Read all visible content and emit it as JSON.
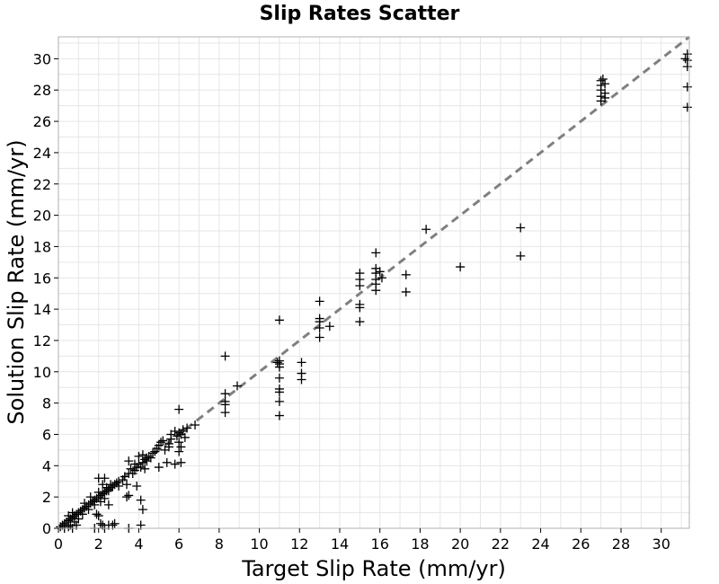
{
  "chart_data": {
    "type": "scatter",
    "title": "Slip Rates Scatter",
    "xlabel": "Target Slip Rate (mm/yr)",
    "ylabel": "Solution Slip Rate (mm/yr)",
    "xlim": [
      0,
      31.4
    ],
    "ylim": [
      0,
      31.4
    ],
    "xticks": [
      0,
      2,
      4,
      6,
      8,
      10,
      12,
      14,
      16,
      18,
      20,
      22,
      24,
      26,
      28,
      30
    ],
    "yticks": [
      0,
      2,
      4,
      6,
      8,
      10,
      12,
      14,
      16,
      18,
      20,
      22,
      24,
      26,
      28,
      30
    ],
    "grid": true,
    "marker": "plus",
    "marker_color": "#000000",
    "reference_line": {
      "style": "dashed",
      "color": "#808080",
      "from": [
        0,
        0
      ],
      "to": [
        31.4,
        31.4
      ]
    },
    "points": [
      [
        0.1,
        0.1
      ],
      [
        0.2,
        0.2
      ],
      [
        0.3,
        0.3
      ],
      [
        0.4,
        0.4
      ],
      [
        0.5,
        0.5
      ],
      [
        0.6,
        0.6
      ],
      [
        0.7,
        0.7
      ],
      [
        0.8,
        0.8
      ],
      [
        0.9,
        0.9
      ],
      [
        1.0,
        1.0
      ],
      [
        1.1,
        1.1
      ],
      [
        1.2,
        1.2
      ],
      [
        1.3,
        1.3
      ],
      [
        1.4,
        1.4
      ],
      [
        1.5,
        1.5
      ],
      [
        1.6,
        1.6
      ],
      [
        1.7,
        1.7
      ],
      [
        1.8,
        1.8
      ],
      [
        1.9,
        1.9
      ],
      [
        2.0,
        2.0
      ],
      [
        2.1,
        2.1
      ],
      [
        2.2,
        2.2
      ],
      [
        2.3,
        2.3
      ],
      [
        2.4,
        2.4
      ],
      [
        2.5,
        2.5
      ],
      [
        2.6,
        2.6
      ],
      [
        2.7,
        2.7
      ],
      [
        2.8,
        2.8
      ],
      [
        2.9,
        2.9
      ],
      [
        3.0,
        3.0
      ],
      [
        0.3,
        0.0
      ],
      [
        0.5,
        0.1
      ],
      [
        0.6,
        0.2
      ],
      [
        0.7,
        0.0
      ],
      [
        0.9,
        0.2
      ],
      [
        0.5,
        0.8
      ],
      [
        0.7,
        1.0
      ],
      [
        1.0,
        0.6
      ],
      [
        1.2,
        0.9
      ],
      [
        0.8,
        0.4
      ],
      [
        1.5,
        1.2
      ],
      [
        1.3,
        1.6
      ],
      [
        1.8,
        1.5
      ],
      [
        1.6,
        2.0
      ],
      [
        1.9,
        0.9
      ],
      [
        2.0,
        0.8
      ],
      [
        2.1,
        0.3
      ],
      [
        2.2,
        0.2
      ],
      [
        2.3,
        0.0
      ],
      [
        1.8,
        0.0
      ],
      [
        2.0,
        3.2
      ],
      [
        2.3,
        3.2
      ],
      [
        2.2,
        2.8
      ],
      [
        2.4,
        2.6
      ],
      [
        2.5,
        2.4
      ],
      [
        2.0,
        2.3
      ],
      [
        2.1,
        1.7
      ],
      [
        2.3,
        1.9
      ],
      [
        2.5,
        1.5
      ],
      [
        2.6,
        2.8
      ],
      [
        2.5,
        0.2
      ],
      [
        2.7,
        0.2
      ],
      [
        2.8,
        0.3
      ],
      [
        3.0,
        2.7
      ],
      [
        3.2,
        3.1
      ],
      [
        3.4,
        2.8
      ],
      [
        3.4,
        2.0
      ],
      [
        3.5,
        2.1
      ],
      [
        3.3,
        3.3
      ],
      [
        3.5,
        0.0
      ],
      [
        3.5,
        3.5
      ],
      [
        3.6,
        3.8
      ],
      [
        3.7,
        3.5
      ],
      [
        3.8,
        3.7
      ],
      [
        3.9,
        3.9
      ],
      [
        4.0,
        4.1
      ],
      [
        4.1,
        3.9
      ],
      [
        4.2,
        4.2
      ],
      [
        4.3,
        4.4
      ],
      [
        4.4,
        4.3
      ],
      [
        3.5,
        4.3
      ],
      [
        4.0,
        4.6
      ],
      [
        4.2,
        4.7
      ],
      [
        4.4,
        4.5
      ],
      [
        4.5,
        4.6
      ],
      [
        3.9,
        2.7
      ],
      [
        4.1,
        1.8
      ],
      [
        4.2,
        1.2
      ],
      [
        4.1,
        0.2
      ],
      [
        4.3,
        3.8
      ],
      [
        4.8,
        4.9
      ],
      [
        4.9,
        5.1
      ],
      [
        5.0,
        5.3
      ],
      [
        5.1,
        5.5
      ],
      [
        5.2,
        5.6
      ],
      [
        5.0,
        3.9
      ],
      [
        5.5,
        5.2
      ],
      [
        5.6,
        5.7
      ],
      [
        5.4,
        4.2
      ],
      [
        5.8,
        4.1
      ],
      [
        5.9,
        5.9
      ],
      [
        6.0,
        6.1
      ],
      [
        6.1,
        6.0
      ],
      [
        6.2,
        6.2
      ],
      [
        6.0,
        5.5
      ],
      [
        6.1,
        5.2
      ],
      [
        6.0,
        4.9
      ],
      [
        6.1,
        4.2
      ],
      [
        6.0,
        7.6
      ],
      [
        6.3,
        5.8
      ],
      [
        5.6,
        6.0
      ],
      [
        5.8,
        6.2
      ],
      [
        6.2,
        6.3
      ],
      [
        6.4,
        6.4
      ],
      [
        6.8,
        6.6
      ],
      [
        5.3,
        5.0
      ],
      [
        5.5,
        5.4
      ],
      [
        4.6,
        4.5
      ],
      [
        4.7,
        4.8
      ],
      [
        3.8,
        4.1
      ],
      [
        8.3,
        11.0
      ],
      [
        8.3,
        8.1
      ],
      [
        8.3,
        7.9
      ],
      [
        8.3,
        8.6
      ],
      [
        8.3,
        7.4
      ],
      [
        8.9,
        9.1
      ],
      [
        11.0,
        13.3
      ],
      [
        11.0,
        10.7
      ],
      [
        11.0,
        10.5
      ],
      [
        11.0,
        10.3
      ],
      [
        11.0,
        9.6
      ],
      [
        11.0,
        8.9
      ],
      [
        11.0,
        8.7
      ],
      [
        11.0,
        8.1
      ],
      [
        11.0,
        7.2
      ],
      [
        10.9,
        10.6
      ],
      [
        12.1,
        10.6
      ],
      [
        12.1,
        9.9
      ],
      [
        12.1,
        9.5
      ],
      [
        13.0,
        14.5
      ],
      [
        13.0,
        13.4
      ],
      [
        13.0,
        13.2
      ],
      [
        13.0,
        12.8
      ],
      [
        13.0,
        12.2
      ],
      [
        13.5,
        12.9
      ],
      [
        15.0,
        16.3
      ],
      [
        15.0,
        15.9
      ],
      [
        15.0,
        15.5
      ],
      [
        15.0,
        14.3
      ],
      [
        15.0,
        14.1
      ],
      [
        15.0,
        13.2
      ],
      [
        15.8,
        17.6
      ],
      [
        15.8,
        16.6
      ],
      [
        15.8,
        16.3
      ],
      [
        15.8,
        15.9
      ],
      [
        15.8,
        15.6
      ],
      [
        15.8,
        15.2
      ],
      [
        16.0,
        16.4
      ],
      [
        16.1,
        16.0
      ],
      [
        17.3,
        16.2
      ],
      [
        17.3,
        15.1
      ],
      [
        18.3,
        19.1
      ],
      [
        20.0,
        16.7
      ],
      [
        23.0,
        19.2
      ],
      [
        23.0,
        17.4
      ],
      [
        27.0,
        28.6
      ],
      [
        27.0,
        28.3
      ],
      [
        27.0,
        28.0
      ],
      [
        27.0,
        27.6
      ],
      [
        27.0,
        27.3
      ],
      [
        27.2,
        28.4
      ],
      [
        27.2,
        27.8
      ],
      [
        27.2,
        27.5
      ],
      [
        27.1,
        28.7
      ],
      [
        31.3,
        30.3
      ],
      [
        31.3,
        29.9
      ],
      [
        31.3,
        29.5
      ],
      [
        31.3,
        28.2
      ],
      [
        31.3,
        26.9
      ],
      [
        31.2,
        30.0
      ]
    ]
  }
}
